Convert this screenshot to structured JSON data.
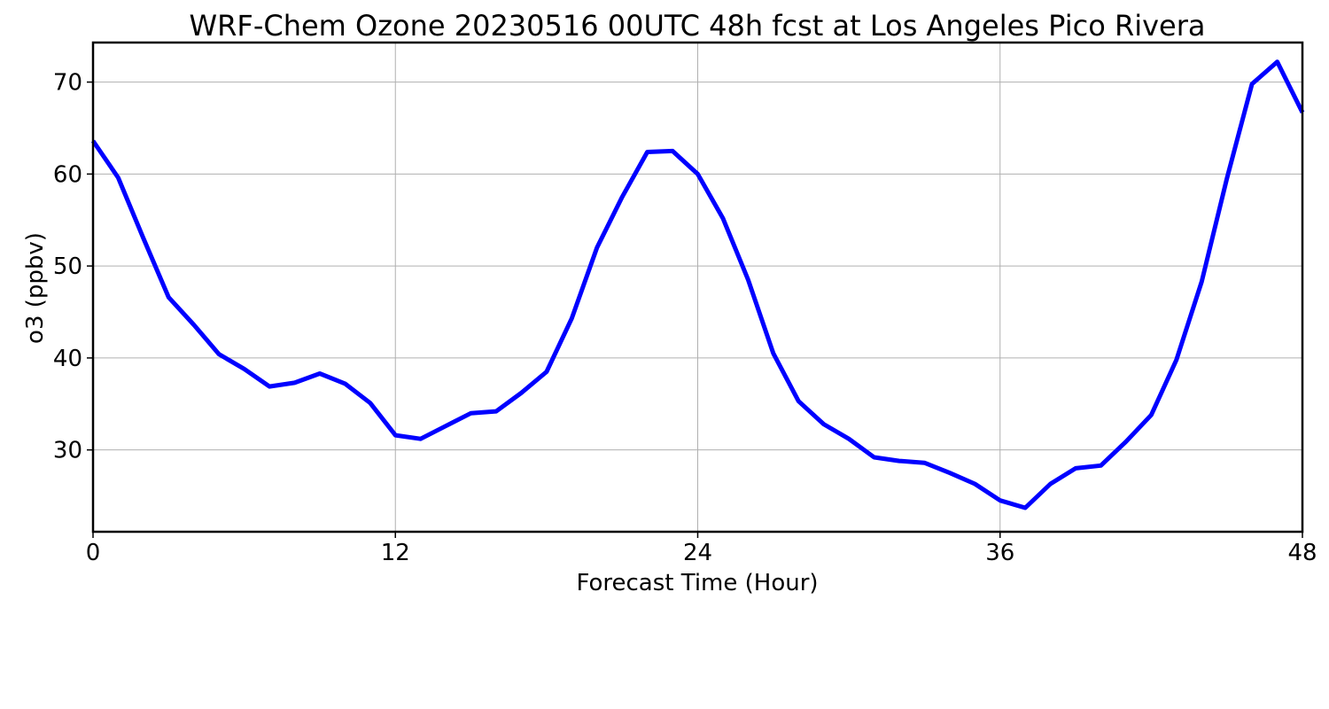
{
  "chart_data": {
    "type": "line",
    "title": "WRF-Chem Ozone  20230516 00UTC 48h fcst at Los Angeles Pico Rivera",
    "xlabel": "Forecast Time (Hour)",
    "ylabel": "o3  (ppbv)",
    "xlim": [
      0,
      48
    ],
    "ylim": [
      21.1,
      74.3
    ],
    "xticks": [
      0,
      12,
      24,
      36,
      48
    ],
    "yticks": [
      30,
      40,
      50,
      60,
      70
    ],
    "grid": true,
    "line_color": "#0000ff",
    "series": [
      {
        "x": [
          0,
          1,
          2,
          3,
          4,
          5,
          6,
          7,
          8,
          9,
          10,
          11,
          12,
          13,
          14,
          15,
          16,
          17,
          18,
          19,
          20,
          21,
          22,
          23,
          24,
          25,
          26,
          27,
          28,
          29,
          30,
          31,
          32,
          33,
          34,
          35,
          36,
          37,
          38,
          39,
          40,
          41,
          42,
          43,
          44,
          45,
          46,
          47,
          48
        ],
        "values": [
          63.6,
          59.6,
          53.0,
          46.6,
          43.6,
          40.4,
          38.8,
          36.9,
          37.3,
          38.3,
          37.2,
          35.1,
          31.6,
          31.2,
          32.6,
          34.0,
          34.2,
          36.2,
          38.5,
          44.3,
          52.0,
          57.5,
          62.4,
          62.5,
          60.0,
          55.2,
          48.5,
          40.5,
          35.3,
          32.8,
          31.2,
          29.2,
          28.8,
          28.6,
          27.5,
          26.3,
          24.5,
          23.7,
          26.3,
          28.0,
          28.3,
          30.9,
          33.8,
          39.8,
          48.3,
          59.5,
          69.8,
          72.2,
          66.7
        ]
      }
    ]
  }
}
